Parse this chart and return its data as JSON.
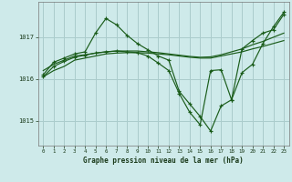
{
  "title": "Graphe pression niveau de la mer (hPa)",
  "background_color": "#ceeaea",
  "grid_color": "#aacccc",
  "line_color": "#1a5c1a",
  "xticks": [
    0,
    1,
    2,
    3,
    4,
    5,
    6,
    7,
    8,
    9,
    10,
    11,
    12,
    13,
    14,
    15,
    16,
    17,
    18,
    19,
    20,
    21,
    22,
    23
  ],
  "yticks": [
    1015,
    1016,
    1017
  ],
  "ylim": [
    1014.4,
    1017.85
  ],
  "xlim": [
    -0.5,
    23.5
  ],
  "lines": [
    {
      "x": [
        0,
        1,
        2,
        3,
        4,
        5,
        6,
        7,
        8,
        9,
        10,
        11,
        12,
        13,
        14,
        15,
        16,
        17,
        18,
        19,
        20,
        21,
        22,
        23
      ],
      "y": [
        1016.05,
        1016.2,
        1016.3,
        1016.45,
        1016.5,
        1016.55,
        1016.6,
        1016.62,
        1016.63,
        1016.63,
        1016.62,
        1016.6,
        1016.58,
        1016.55,
        1016.52,
        1016.5,
        1016.5,
        1016.55,
        1016.6,
        1016.65,
        1016.72,
        1016.78,
        1016.85,
        1016.92
      ],
      "marker": false
    },
    {
      "x": [
        0,
        1,
        2,
        3,
        4,
        5,
        6,
        7,
        8,
        9,
        10,
        11,
        12,
        13,
        14,
        15,
        16,
        17,
        18,
        19,
        20,
        21,
        22,
        23
      ],
      "y": [
        1016.2,
        1016.35,
        1016.45,
        1016.55,
        1016.58,
        1016.62,
        1016.65,
        1016.67,
        1016.67,
        1016.67,
        1016.65,
        1016.63,
        1016.6,
        1016.57,
        1016.54,
        1016.52,
        1016.53,
        1016.58,
        1016.65,
        1016.72,
        1016.82,
        1016.9,
        1017.0,
        1017.1
      ],
      "marker": false
    },
    {
      "x": [
        0,
        1,
        2,
        3,
        4,
        5,
        6,
        7,
        8,
        9,
        10,
        11,
        12,
        13,
        14,
        15,
        16,
        17,
        18,
        19,
        20,
        21,
        22,
        23
      ],
      "y": [
        1016.1,
        1016.4,
        1016.5,
        1016.6,
        1016.65,
        1017.1,
        1017.45,
        1017.3,
        1017.05,
        1016.85,
        1016.7,
        1016.55,
        1016.45,
        1015.7,
        1015.4,
        1015.1,
        1014.75,
        1015.35,
        1015.5,
        1016.15,
        1016.35,
        1016.85,
        1017.25,
        1017.6
      ],
      "marker": true
    },
    {
      "x": [
        0,
        1,
        2,
        3,
        4,
        5,
        6,
        7,
        8,
        9,
        10,
        11,
        12,
        13,
        14,
        15,
        16,
        17,
        18,
        19,
        20,
        21,
        22,
        23
      ],
      "y": [
        1016.05,
        1016.3,
        1016.42,
        1016.52,
        1016.57,
        1016.62,
        1016.65,
        1016.67,
        1016.65,
        1016.63,
        1016.55,
        1016.38,
        1016.2,
        1015.65,
        1015.2,
        1014.9,
        1016.2,
        1016.22,
        1015.5,
        1016.72,
        1016.92,
        1017.1,
        1017.18,
        1017.55
      ],
      "marker": true
    }
  ]
}
